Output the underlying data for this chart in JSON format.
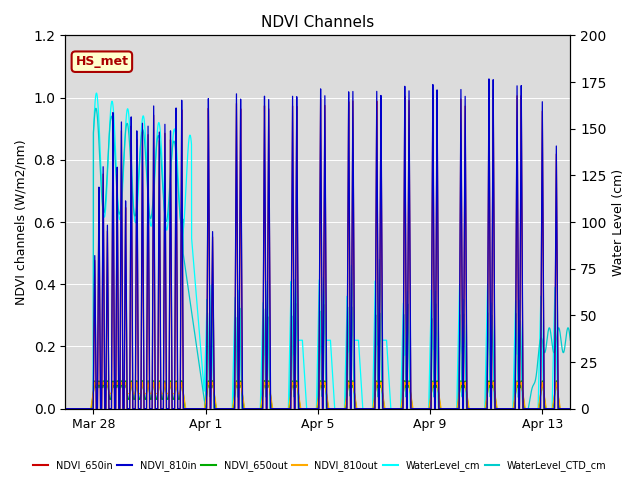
{
  "title": "NDVI Channels",
  "ylabel_left": "NDVI channels (W/m2/nm)",
  "ylabel_right": "Water Level (cm)",
  "ylim_left": [
    0,
    1.2
  ],
  "ylim_right": [
    0,
    200
  ],
  "background_color": "#dcdcdc",
  "annotation_text": "HS_met",
  "annotation_color": "#aa0000",
  "annotation_bg": "#ffffcc",
  "annotation_border": "#aa0000",
  "series": {
    "NDVI_650in": {
      "color": "#cc0000"
    },
    "NDVI_810in": {
      "color": "#0000cc"
    },
    "NDVI_650out": {
      "color": "#00aa00"
    },
    "NDVI_810out": {
      "color": "#ffaa00"
    },
    "WaterLevel_cm": {
      "color": "#00ffff"
    },
    "WaterLevel_CTD_cm": {
      "color": "#00cccc"
    }
  },
  "xtick_labels": [
    "Mar 28",
    "Apr 1",
    "Apr 5",
    "Apr 9",
    "Apr 13"
  ],
  "xtick_positions": [
    1,
    5,
    9,
    13,
    17
  ],
  "xlim": [
    0,
    18
  ],
  "legend_labels": [
    "NDVI_650in",
    "NDVI_810in",
    "NDVI_650out",
    "NDVI_810out",
    "WaterLevel_cm",
    "WaterLevel_CTD_cm"
  ],
  "legend_colors": [
    "#cc0000",
    "#0000cc",
    "#00aa00",
    "#ffaa00",
    "#00ffff",
    "#00cccc"
  ]
}
